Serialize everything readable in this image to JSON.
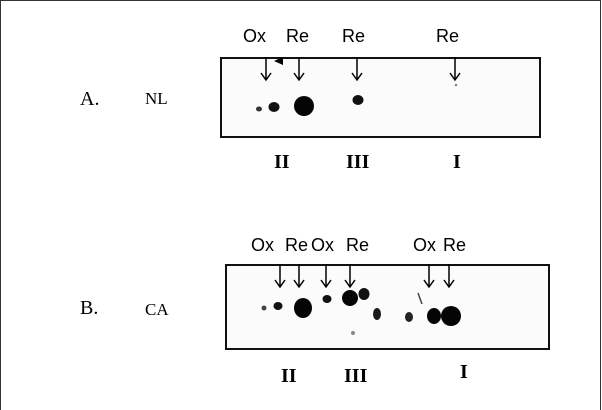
{
  "panels": [
    {
      "letter": "A.",
      "sample": "NL",
      "state_labels": [
        "Ox",
        "Re",
        "Re",
        "Re"
      ],
      "complexes": [
        "II",
        "III",
        "I"
      ]
    },
    {
      "letter": "B.",
      "sample": "CA",
      "state_labels": [
        "Ox",
        "Re",
        "Ox",
        "Re",
        "Ox",
        "Re"
      ],
      "complexes": [
        "II",
        "III",
        "I"
      ]
    }
  ]
}
